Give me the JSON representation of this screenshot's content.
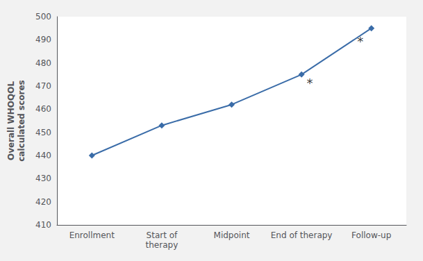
{
  "chart_data": {
    "type": "line",
    "categories": [
      "Enrollment",
      "Start of\ntherapy",
      "Midpoint",
      "End of therapy",
      "Follow-up"
    ],
    "values": [
      440,
      453,
      462,
      475,
      495
    ],
    "color": "#3a6ca8",
    "marker": "diamond",
    "ylabel": "Overall WHOQOL\ncalculated scores",
    "ylim": [
      410,
      500
    ],
    "yticks": [
      410,
      420,
      430,
      440,
      450,
      460,
      470,
      480,
      490,
      500
    ],
    "grid": false,
    "annotations": [
      {
        "text": "*",
        "category": "End of therapy",
        "y": 470
      },
      {
        "text": "*",
        "category": "Follow-up",
        "y": 488
      }
    ]
  }
}
